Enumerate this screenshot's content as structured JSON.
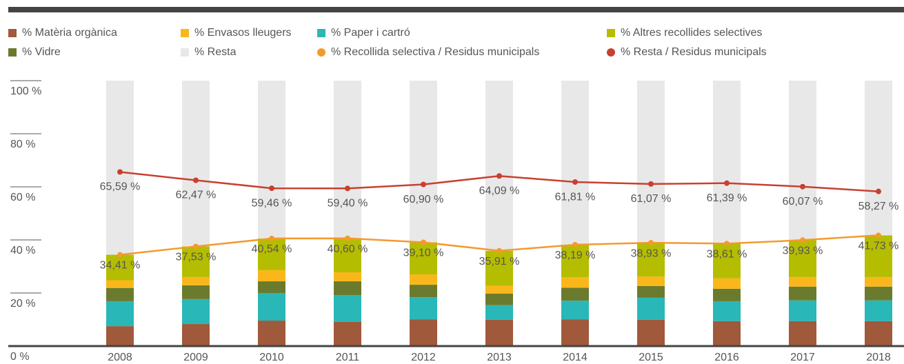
{
  "chart_data": {
    "type": "bar",
    "categories": [
      "2008",
      "2009",
      "2010",
      "2011",
      "2012",
      "2013",
      "2014",
      "2015",
      "2016",
      "2017",
      "2018"
    ],
    "ylim": [
      0,
      100
    ],
    "yticks": [
      {
        "value": 0,
        "label": "0 %"
      },
      {
        "value": 20,
        "label": "20 %"
      },
      {
        "value": 40,
        "label": "40 %"
      },
      {
        "value": 60,
        "label": "60 %"
      },
      {
        "value": 80,
        "label": "80 %"
      },
      {
        "value": 100,
        "label": "100 %"
      }
    ],
    "series": [
      {
        "name": "% Matèria orgànica",
        "type": "bar",
        "color": "#a0593a",
        "values": [
          7.5,
          8.3,
          9.6,
          9.1,
          10.1,
          9.9,
          10.1,
          9.9,
          9.4,
          9.4,
          9.4
        ]
      },
      {
        "name": "% Paper i cartró",
        "type": "bar",
        "color": "#2ab7b8",
        "values": [
          9.4,
          9.4,
          10.4,
          10.1,
          8.3,
          5.5,
          7.0,
          8.3,
          7.5,
          7.8,
          7.8
        ]
      },
      {
        "name": "% Vidre",
        "type": "bar",
        "color": "#6b7b2e",
        "values": [
          5.0,
          5.2,
          4.4,
          5.2,
          4.7,
          4.4,
          4.9,
          4.4,
          4.7,
          5.2,
          5.2
        ]
      },
      {
        "name": "% Envasos lleugers",
        "type": "bar",
        "color": "#f9b71b",
        "values": [
          2.9,
          3.1,
          4.2,
          3.4,
          3.9,
          2.9,
          3.9,
          3.6,
          3.9,
          3.6,
          3.6
        ]
      },
      {
        "name": "% Altres recollides selectives",
        "type": "bar",
        "color": "#b5bd00",
        "values": [
          9.61,
          11.53,
          11.94,
          12.8,
          12.1,
          13.21,
          12.29,
          12.73,
          13.11,
          13.93,
          15.73
        ]
      },
      {
        "name": "% Resta",
        "type": "bar",
        "color": "#e8e8e8",
        "values": [
          65.59,
          62.47,
          59.46,
          59.4,
          60.9,
          64.09,
          61.81,
          61.07,
          61.39,
          60.07,
          58.27
        ]
      },
      {
        "name": "% Recollida selectiva / Residus municipals",
        "type": "line",
        "color": "#f39a2e",
        "values": [
          34.41,
          37.53,
          40.54,
          40.6,
          39.1,
          35.91,
          38.19,
          38.93,
          38.61,
          39.93,
          41.73
        ],
        "value_labels": [
          "34,41 %",
          "37,53 %",
          "40,54 %",
          "40,60 %",
          "39,10 %",
          "35,91 %",
          "38,19 %",
          "38,93 %",
          "38,61 %",
          "39,93 %",
          "41,73 %"
        ]
      },
      {
        "name": "% Resta / Residus municipals",
        "type": "line",
        "color": "#c8402f",
        "values": [
          65.59,
          62.47,
          59.46,
          59.4,
          60.9,
          64.09,
          61.81,
          61.07,
          61.39,
          60.07,
          58.27
        ],
        "value_labels": [
          "65,59 %",
          "62,47 %",
          "59,46 %",
          "59,40 %",
          "60,90 %",
          "64,09 %",
          "61,81 %",
          "61,07 %",
          "61,39 %",
          "60,07 %",
          "58,27 %"
        ]
      }
    ]
  }
}
